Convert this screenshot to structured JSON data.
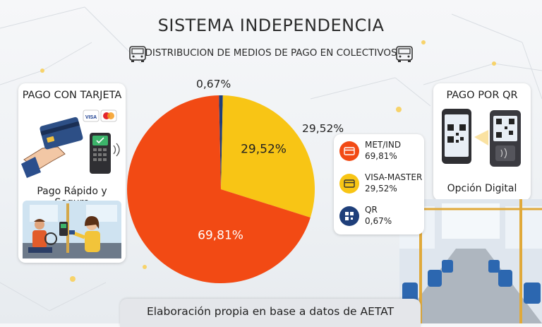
{
  "title": "SISTEMA INDEPENDENCIA",
  "subtitle": "DISTRIBUCION DE MEDIOS DE PAGO EN COLECTIVOS",
  "left_card": {
    "heading": "PAGO CON TARJETA",
    "caption": "Pago Rápido y Seguro",
    "visa_text": "VISA"
  },
  "right_card": {
    "heading": "PAGO POR QR",
    "caption": "Opción Digital"
  },
  "footer": "Elaboración propia en base a datos de AETAT",
  "colors": {
    "met_ind": "#f24a14",
    "visa_master": "#f8c515",
    "qr": "#1f3f7a"
  },
  "chart_data": {
    "type": "pie",
    "title": "DISTRIBUCION DE MEDIOS DE PAGO EN COLECTIVOS",
    "slices": [
      {
        "name": "MET/IND",
        "value": 69.81,
        "label": "69,81%",
        "color": "#f24a14",
        "icon": "card-icon"
      },
      {
        "name": "VISA-MASTER",
        "value": 29.52,
        "label": "29,52%",
        "color": "#f8c515",
        "icon": "card-icon"
      },
      {
        "name": "QR",
        "value": 0.67,
        "label": "0,67%",
        "color": "#1f3f7a",
        "icon": "qr-icon"
      }
    ],
    "outer_labels": [
      "0,67%",
      "29,52%"
    ],
    "legend": [
      {
        "name": "MET/IND",
        "value": "69,81%"
      },
      {
        "name": "VISA-MASTER",
        "value": "29,52%"
      },
      {
        "name": "QR",
        "value": "0,67%"
      }
    ],
    "legend_position": "right"
  }
}
